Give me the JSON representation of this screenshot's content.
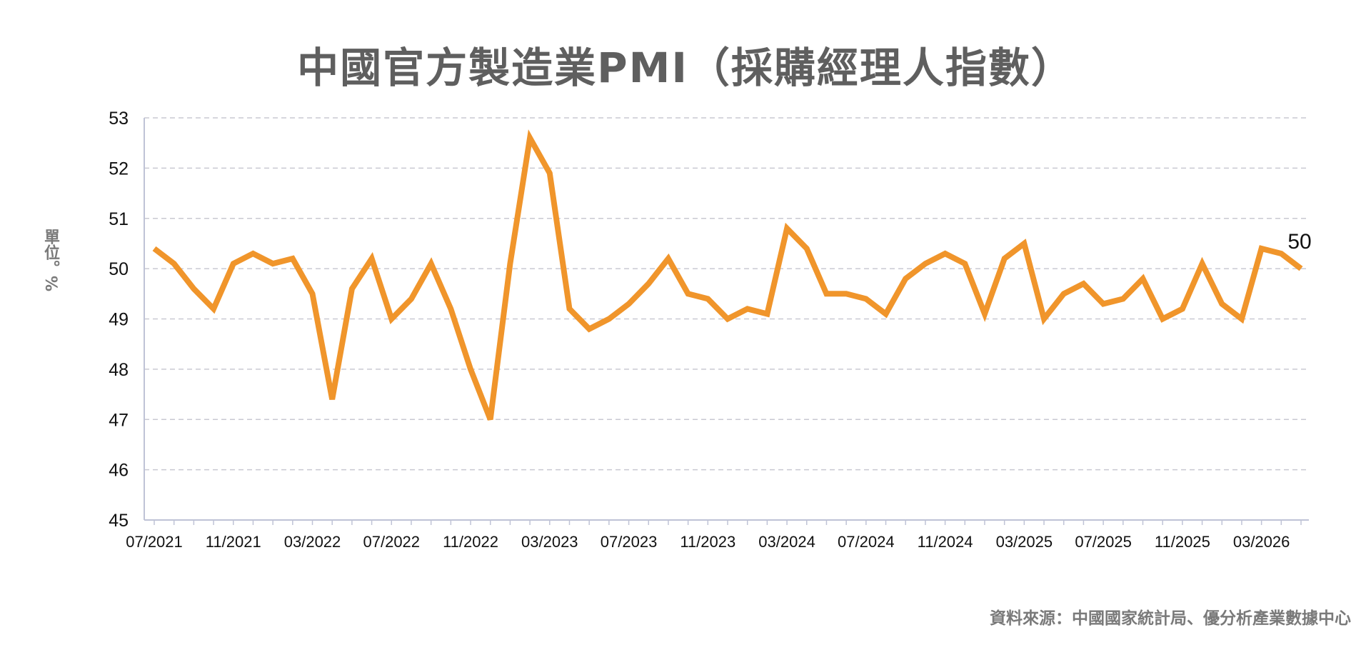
{
  "chart_data": {
    "type": "line",
    "title": "中國官方製造業PMI（採購經理人指數）",
    "ylabel": "單位。%",
    "source": "資料來源：中國國家統計局、優分析產業數據中心",
    "ylim": [
      45,
      53
    ],
    "yticks": [
      45,
      46,
      47,
      48,
      49,
      50,
      51,
      52,
      53
    ],
    "grid": true,
    "legend": "none",
    "xtick_labels": [
      "07/2021",
      "11/2021",
      "03/2022",
      "07/2022",
      "11/2022",
      "03/2023",
      "07/2023",
      "11/2023",
      "03/2024",
      "07/2024",
      "11/2024",
      "03/2025",
      "07/2025",
      "11/2025",
      "03/2026"
    ],
    "line_color": "#f0952b",
    "end_label": "50",
    "series": [
      {
        "x": [
          "07/2021",
          "08/2021",
          "09/2021",
          "10/2021",
          "11/2021",
          "12/2021",
          "01/2022",
          "02/2022",
          "03/2022",
          "04/2022",
          "05/2022",
          "06/2022",
          "07/2022",
          "08/2022",
          "09/2022",
          "10/2022",
          "11/2022",
          "12/2022",
          "01/2023",
          "02/2023",
          "03/2023",
          "04/2023",
          "05/2023",
          "06/2023",
          "07/2023",
          "08/2023",
          "09/2023",
          "10/2023",
          "11/2023",
          "12/2023",
          "01/2024",
          "02/2024",
          "03/2024",
          "04/2024",
          "05/2024",
          "06/2024",
          "07/2024",
          "08/2024",
          "09/2024",
          "10/2024",
          "11/2024",
          "12/2024",
          "01/2025",
          "02/2025",
          "03/2025",
          "04/2025",
          "05/2025",
          "06/2025",
          "07/2025",
          "08/2025",
          "09/2025",
          "10/2025",
          "11/2025",
          "12/2025",
          "01/2026",
          "02/2026",
          "03/2026",
          "04/2026",
          "05/2026"
        ],
        "values": [
          50.4,
          50.1,
          49.6,
          49.2,
          50.1,
          50.3,
          50.1,
          50.2,
          49.5,
          47.4,
          49.6,
          50.2,
          49.0,
          49.4,
          50.1,
          49.2,
          48.0,
          47.0,
          50.1,
          52.6,
          51.9,
          49.2,
          48.8,
          49.0,
          49.3,
          49.7,
          50.2,
          49.5,
          49.4,
          49.0,
          49.2,
          49.1,
          50.8,
          50.4,
          49.5,
          49.5,
          49.4,
          49.1,
          49.8,
          50.1,
          50.3,
          50.1,
          49.1,
          50.2,
          50.5,
          49.0,
          49.5,
          49.7,
          49.3,
          49.4,
          49.8,
          49.0,
          49.2,
          50.1,
          49.3,
          49.0,
          50.4,
          50.3,
          50.0
        ]
      }
    ]
  }
}
